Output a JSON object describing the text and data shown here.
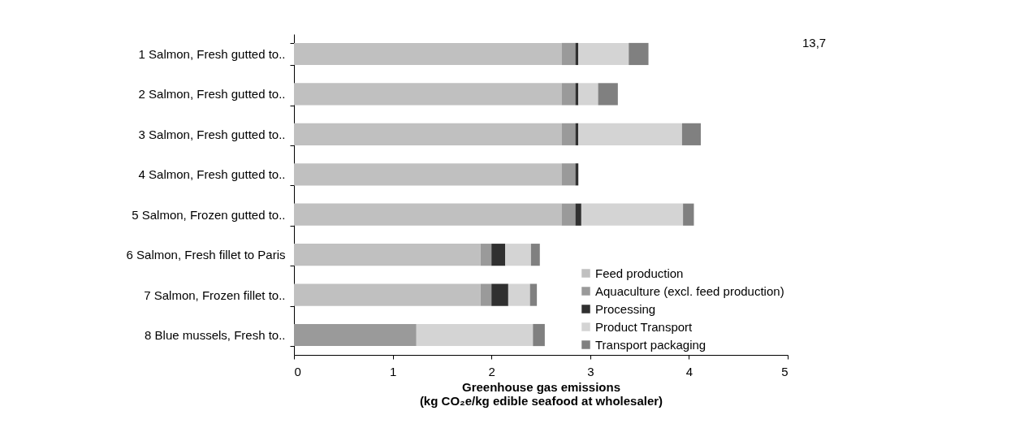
{
  "chart_data": {
    "type": "bar",
    "orientation": "horizontal",
    "stacked": true,
    "xlabel": "Greenhouse gas emissions\n(kg CO₂e/kg edible seafood at wholesaler)",
    "categories": [
      "1 Salmon, Fresh gutted to..",
      "2 Salmon, Fresh gutted to..",
      "3 Salmon, Fresh gutted to..",
      "4 Salmon, Fresh gutted to..",
      "5 Salmon, Frozen gutted to..",
      "6 Salmon, Fresh fillet to Paris",
      "7 Salmon, Frozen fillet to..",
      "8 Blue mussels, Fresh to.."
    ],
    "series": [
      {
        "name": "Feed production",
        "color": "#c0c0c0",
        "values": [
          2.71,
          2.71,
          2.71,
          2.71,
          2.71,
          1.89,
          1.89,
          null
        ]
      },
      {
        "name": "Aquaculture (excl. feed production)",
        "color": "#9a9a9a",
        "values": [
          0.14,
          0.14,
          0.14,
          0.14,
          0.14,
          0.11,
          0.11,
          1.24
        ]
      },
      {
        "name": "Processing",
        "color": "#303030",
        "values": [
          0.03,
          0.03,
          0.03,
          0.03,
          0.06,
          0.14,
          0.17,
          null
        ]
      },
      {
        "name": "Product Transport",
        "color": "#d4d4d4",
        "values": [
          0.51,
          0.2,
          1.05,
          null,
          1.03,
          0.26,
          0.22,
          1.18
        ]
      },
      {
        "name": "Transport packaging",
        "color": "#808080",
        "values": [
          0.2,
          0.2,
          0.19,
          null,
          0.11,
          0.09,
          0.07,
          0.12
        ]
      }
    ],
    "annotations": [
      "13,7"
    ],
    "xlim": [
      0,
      5
    ],
    "xticks": [
      0,
      1,
      2,
      3,
      4,
      5
    ],
    "grid": false,
    "legend": "bottom right"
  }
}
